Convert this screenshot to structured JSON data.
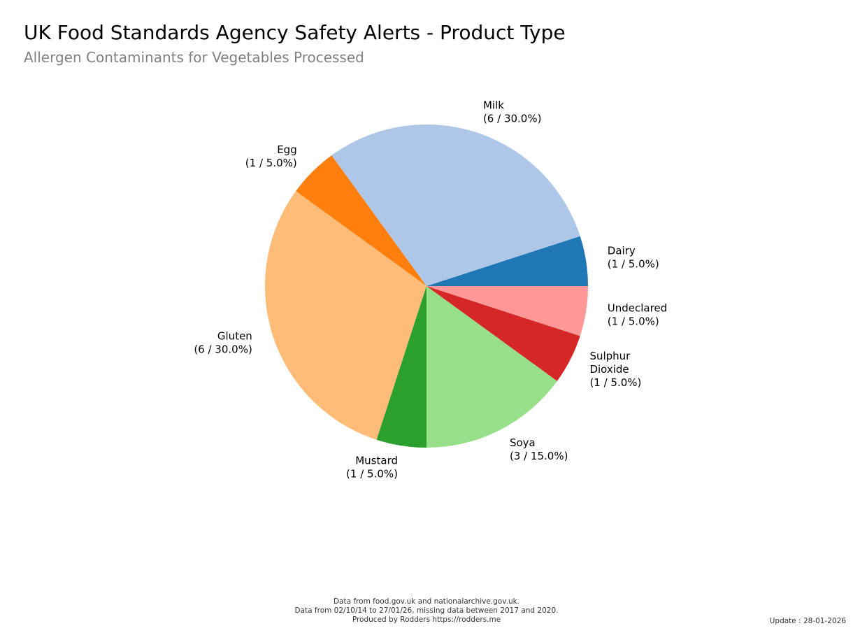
{
  "chart_data": {
    "type": "pie",
    "title": "UK Food Standards Agency Safety Alerts - Product Type",
    "subtitle": "Allergen Contaminants for Vegetables Processed",
    "start_angle_deg": 0,
    "direction": "counterclockwise",
    "slices": [
      {
        "label": "Dairy",
        "value": 1,
        "pct": "5.0%",
        "color": "#1f77b4"
      },
      {
        "label": "Milk",
        "value": 6,
        "pct": "30.0%",
        "color": "#aec7e8"
      },
      {
        "label": "Egg",
        "value": 1,
        "pct": "5.0%",
        "color": "#ff7f0e"
      },
      {
        "label": "Gluten",
        "value": 6,
        "pct": "30.0%",
        "color": "#ffbb78"
      },
      {
        "label": "Mustard",
        "value": 1,
        "pct": "5.0%",
        "color": "#2ca02c"
      },
      {
        "label": "Soya",
        "value": 3,
        "pct": "15.0%",
        "color": "#98df8a"
      },
      {
        "label": "Sulphur\nDioxide",
        "value": 1,
        "pct": "5.0%",
        "color": "#d62728"
      },
      {
        "label": "Undeclared",
        "value": 1,
        "pct": "5.0%",
        "color": "#ff9896"
      }
    ]
  },
  "footer": {
    "line1": "Data from food.gov.uk and nationalarchive.gov.uk.",
    "line2": "Data from 02/10/14 to 27/01/26, missing data between 2017 and 2020.",
    "line3": "Produced by Rodders https://rodders.me",
    "update": "Update : 28-01-2026"
  }
}
